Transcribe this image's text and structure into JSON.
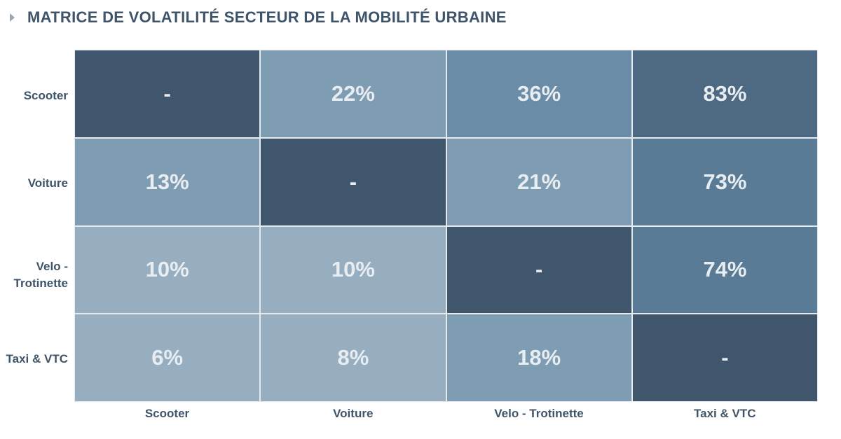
{
  "title": "MATRICE DE VOLATILITÉ SECTEUR DE LA MOBILITÉ URBAINE",
  "chart_data": {
    "type": "heatmap",
    "title": "MATRICE DE VOLATILITÉ SECTEUR DE LA MOBILITÉ URBAINE",
    "rows": [
      "Scooter",
      "Voiture",
      "Velo - Trotinette",
      "Taxi & VTC"
    ],
    "columns": [
      "Scooter",
      "Voiture",
      "Velo - Trotinette",
      "Taxi & VTC"
    ],
    "values": [
      [
        null,
        22,
        36,
        83
      ],
      [
        13,
        null,
        21,
        73
      ],
      [
        10,
        10,
        null,
        74
      ],
      [
        6,
        8,
        18,
        null
      ]
    ],
    "labels": [
      [
        "-",
        "22%",
        "36%",
        "83%"
      ],
      [
        "13%",
        "-",
        "21%",
        "73%"
      ],
      [
        "10%",
        "10%",
        "-",
        "74%"
      ],
      [
        "6%",
        "8%",
        "18%",
        "-"
      ]
    ],
    "colors": [
      [
        "#40566c",
        "#7f9db2",
        "#6b8ca6",
        "#4e6a83"
      ],
      [
        "#7f9db2",
        "#40566c",
        "#7f9db2",
        "#5a7b95"
      ],
      [
        "#97adc0",
        "#97adc0",
        "#40566c",
        "#5a7b95"
      ],
      [
        "#97adc0",
        "#97adc0",
        "#7f9db2",
        "#40566c"
      ]
    ],
    "row_label_lines": [
      [
        "Scooter"
      ],
      [
        "Voiture"
      ],
      [
        "Velo -",
        "Trotinette"
      ],
      [
        "Taxi & VTC"
      ]
    ]
  }
}
